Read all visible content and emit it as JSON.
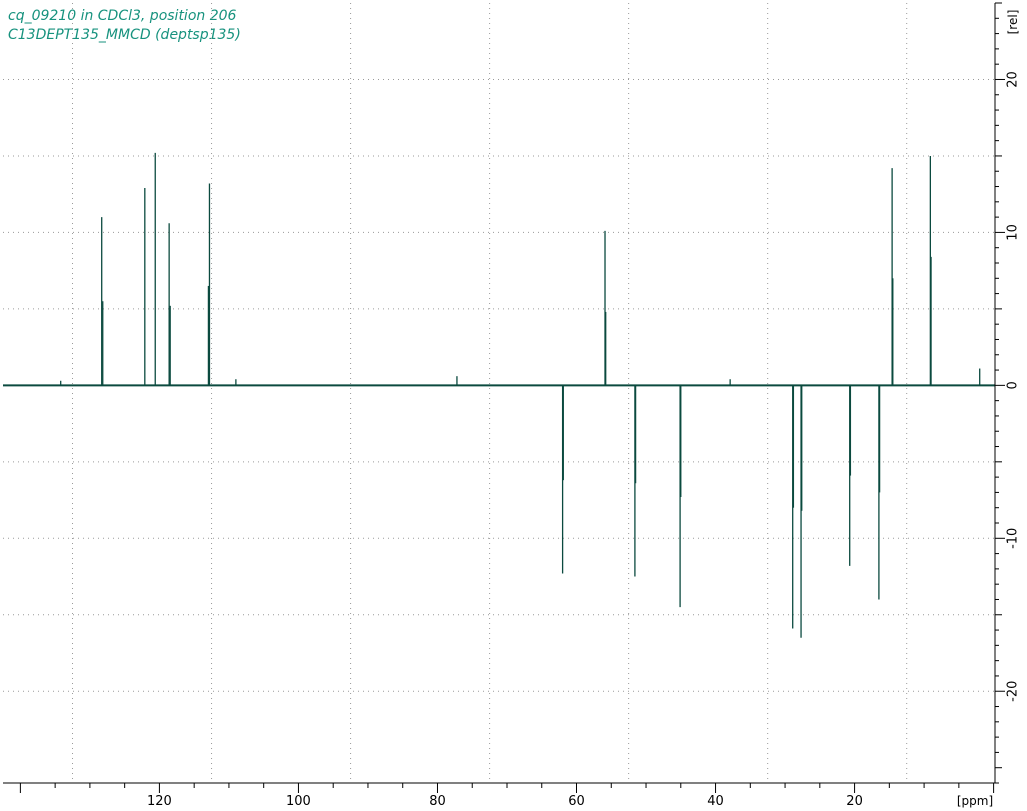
{
  "header": {
    "line1": "cq_09210 in CDCl3, position 206",
    "line2": "C13DEPT135_MMCD (deptsp135)"
  },
  "colors": {
    "spectrum": "#0b4a3f",
    "title": "#17927e",
    "grid": "#9a9a9a",
    "axis": "#000000"
  },
  "chart_data": {
    "type": "line",
    "title": "cq_09210 in CDCl3, position 206",
    "subtitle": "C13DEPT135_MMCD (deptsp135)",
    "xlabel": "[ppm]",
    "ylabel": "[rel]",
    "x_reversed": true,
    "xlim": [
      142.5,
      -0.2
    ],
    "ylim": [
      -26,
      25
    ],
    "x_ticks": [
      120,
      100,
      80,
      60,
      40,
      20
    ],
    "x_tick_labels": [
      "120",
      "100",
      "80",
      "60",
      "40",
      "20"
    ],
    "y_ticks": [
      20,
      10,
      0,
      -10,
      -20
    ],
    "y_tick_labels": [
      "20",
      "10",
      "0",
      "-10",
      "-20"
    ],
    "x_minor_step": 5,
    "y_minor_step": 1,
    "grid": true,
    "x_grid": [
      132.5,
      112.5,
      92.5,
      72.5,
      52.5,
      32.5,
      12.5
    ],
    "y_grid": [
      20,
      15,
      10,
      5,
      0,
      -5,
      -10,
      -15,
      -20
    ],
    "peaks": [
      {
        "ppm": 134.2,
        "intensity": 0.3
      },
      {
        "ppm": 128.3,
        "intensity": 11.0
      },
      {
        "ppm": 128.15,
        "intensity": 5.5
      },
      {
        "ppm": 122.1,
        "intensity": 12.9
      },
      {
        "ppm": 120.6,
        "intensity": 15.2
      },
      {
        "ppm": 118.6,
        "intensity": 10.6
      },
      {
        "ppm": 118.45,
        "intensity": 5.2
      },
      {
        "ppm": 112.8,
        "intensity": 13.2
      },
      {
        "ppm": 112.95,
        "intensity": 6.5
      },
      {
        "ppm": 109.0,
        "intensity": 0.4
      },
      {
        "ppm": 77.2,
        "intensity": 0.6
      },
      {
        "ppm": 55.9,
        "intensity": 10.1
      },
      {
        "ppm": 55.8,
        "intensity": 4.8
      },
      {
        "ppm": 37.9,
        "intensity": 0.4
      },
      {
        "ppm": 2.0,
        "intensity": 1.1
      },
      {
        "ppm": 14.6,
        "intensity": 14.2
      },
      {
        "ppm": 14.5,
        "intensity": 7.0
      },
      {
        "ppm": 9.1,
        "intensity": 15.0
      },
      {
        "ppm": 9.0,
        "intensity": 8.4
      },
      {
        "ppm": 62.0,
        "intensity": -12.3
      },
      {
        "ppm": 61.9,
        "intensity": -6.2
      },
      {
        "ppm": 51.6,
        "intensity": -12.5
      },
      {
        "ppm": 51.5,
        "intensity": -6.4
      },
      {
        "ppm": 45.1,
        "intensity": -14.5
      },
      {
        "ppm": 45.0,
        "intensity": -7.3
      },
      {
        "ppm": 28.9,
        "intensity": -15.9
      },
      {
        "ppm": 28.8,
        "intensity": -8.0
      },
      {
        "ppm": 27.7,
        "intensity": -16.5
      },
      {
        "ppm": 27.6,
        "intensity": -8.2
      },
      {
        "ppm": 20.7,
        "intensity": -11.8
      },
      {
        "ppm": 20.6,
        "intensity": -5.9
      },
      {
        "ppm": 16.5,
        "intensity": -14.0
      },
      {
        "ppm": 16.4,
        "intensity": -7.0
      }
    ]
  }
}
